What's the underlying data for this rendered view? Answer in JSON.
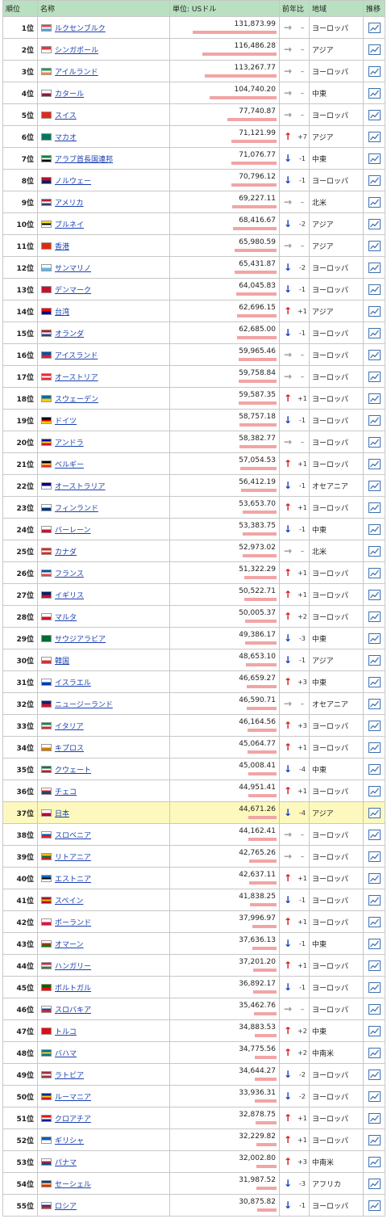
{
  "headers": {
    "rank": "順位",
    "name": "名称",
    "unit": "単位: USドル",
    "change": "前年比",
    "region": "地域",
    "trend": "推移"
  },
  "rank_suffix": "位",
  "max_value": 131873.99,
  "rows": [
    {
      "rank": 1,
      "name": "ルクセンブルク",
      "value": "131,873.99",
      "v": 131873.99,
      "dir": "flat",
      "change": "–",
      "region": "ヨーロッパ",
      "flag": [
        "#ef4135",
        "#ffffff",
        "#4d9fe0"
      ]
    },
    {
      "rank": 2,
      "name": "シンガポール",
      "value": "116,486.28",
      "v": 116486.28,
      "dir": "flat",
      "change": "–",
      "region": "アジア",
      "flag": [
        "#e0383e",
        "#ffffff"
      ]
    },
    {
      "rank": 3,
      "name": "アイルランド",
      "value": "113,267.77",
      "v": 113267.77,
      "dir": "flat",
      "change": "–",
      "region": "ヨーロッパ",
      "flag": [
        "#169b62",
        "#ffffff",
        "#ff883e"
      ]
    },
    {
      "rank": 4,
      "name": "カタール",
      "value": "104,740.20",
      "v": 104740.2,
      "dir": "flat",
      "change": "–",
      "region": "中東",
      "flag": [
        "#ffffff",
        "#8d1b3d"
      ]
    },
    {
      "rank": 5,
      "name": "スイス",
      "value": "77,740.87",
      "v": 77740.87,
      "dir": "flat",
      "change": "–",
      "region": "ヨーロッパ",
      "flag": [
        "#e0291c"
      ]
    },
    {
      "rank": 6,
      "name": "マカオ",
      "value": "71,121.99",
      "v": 71121.99,
      "dir": "up",
      "change": "+7",
      "region": "アジア",
      "flag": [
        "#00785e"
      ]
    },
    {
      "rank": 7,
      "name": "アラブ首長国連邦",
      "value": "71,076.77",
      "v": 71076.77,
      "dir": "down",
      "change": "-1",
      "region": "中東",
      "flag": [
        "#00843d",
        "#ffffff",
        "#000000"
      ]
    },
    {
      "rank": 8,
      "name": "ノルウェー",
      "value": "70,796.12",
      "v": 70796.12,
      "dir": "down",
      "change": "-1",
      "region": "ヨーロッパ",
      "flag": [
        "#ba0c2f",
        "#00205b"
      ]
    },
    {
      "rank": 9,
      "name": "アメリカ",
      "value": "69,227.11",
      "v": 69227.11,
      "dir": "flat",
      "change": "–",
      "region": "北米",
      "flag": [
        "#b22234",
        "#ffffff",
        "#3c3b6e"
      ]
    },
    {
      "rank": 10,
      "name": "ブルネイ",
      "value": "68,416.67",
      "v": 68416.67,
      "dir": "down",
      "change": "-2",
      "region": "アジア",
      "flag": [
        "#f7e017",
        "#000000",
        "#ffffff"
      ]
    },
    {
      "rank": 11,
      "name": "香港",
      "value": "65,980.59",
      "v": 65980.59,
      "dir": "flat",
      "change": "–",
      "region": "アジア",
      "flag": [
        "#de2910"
      ]
    },
    {
      "rank": 12,
      "name": "サンマリノ",
      "value": "65,431.87",
      "v": 65431.87,
      "dir": "down",
      "change": "-2",
      "region": "ヨーロッパ",
      "flag": [
        "#ffffff",
        "#5eb6e4"
      ]
    },
    {
      "rank": 13,
      "name": "デンマーク",
      "value": "64,045.83",
      "v": 64045.83,
      "dir": "down",
      "change": "-1",
      "region": "ヨーロッパ",
      "flag": [
        "#c8102e"
      ]
    },
    {
      "rank": 14,
      "name": "台湾",
      "value": "62,696.15",
      "v": 62696.15,
      "dir": "up",
      "change": "+1",
      "region": "アジア",
      "flag": [
        "#fe0000",
        "#000095"
      ]
    },
    {
      "rank": 15,
      "name": "オランダ",
      "value": "62,685.00",
      "v": 62685.0,
      "dir": "down",
      "change": "-1",
      "region": "ヨーロッパ",
      "flag": [
        "#ae1c28",
        "#ffffff",
        "#21468b"
      ]
    },
    {
      "rank": 16,
      "name": "アイスランド",
      "value": "59,965.46",
      "v": 59965.46,
      "dir": "flat",
      "change": "–",
      "region": "ヨーロッパ",
      "flag": [
        "#02529c",
        "#dc1e35"
      ]
    },
    {
      "rank": 17,
      "name": "オーストリア",
      "value": "59,758.84",
      "v": 59758.84,
      "dir": "flat",
      "change": "–",
      "region": "ヨーロッパ",
      "flag": [
        "#ed2939",
        "#ffffff",
        "#ed2939"
      ]
    },
    {
      "rank": 18,
      "name": "スウェーデン",
      "value": "59,587.35",
      "v": 59587.35,
      "dir": "up",
      "change": "+1",
      "region": "ヨーロッパ",
      "flag": [
        "#006aa7",
        "#fecc00"
      ]
    },
    {
      "rank": 19,
      "name": "ドイツ",
      "value": "58,757.18",
      "v": 58757.18,
      "dir": "down",
      "change": "-1",
      "region": "ヨーロッパ",
      "flag": [
        "#000000",
        "#dd0000",
        "#ffce00"
      ]
    },
    {
      "rank": 20,
      "name": "アンドラ",
      "value": "58,382.77",
      "v": 58382.77,
      "dir": "flat",
      "change": "–",
      "region": "ヨーロッパ",
      "flag": [
        "#10069f",
        "#fedf00",
        "#d50032"
      ]
    },
    {
      "rank": 21,
      "name": "ベルギー",
      "value": "57,054.53",
      "v": 57054.53,
      "dir": "up",
      "change": "+1",
      "region": "ヨーロッパ",
      "flag": [
        "#000000",
        "#fae042",
        "#ed2939"
      ]
    },
    {
      "rank": 22,
      "name": "オーストラリア",
      "value": "56,412.19",
      "v": 56412.19,
      "dir": "down",
      "change": "-1",
      "region": "オセアニア",
      "flag": [
        "#00008b",
        "#ffffff"
      ]
    },
    {
      "rank": 23,
      "name": "フィンランド",
      "value": "53,653.70",
      "v": 53653.7,
      "dir": "up",
      "change": "+1",
      "region": "ヨーロッパ",
      "flag": [
        "#ffffff",
        "#003580"
      ]
    },
    {
      "rank": 24,
      "name": "バーレーン",
      "value": "53,383.75",
      "v": 53383.75,
      "dir": "down",
      "change": "-1",
      "region": "中東",
      "flag": [
        "#ffffff",
        "#ce1126"
      ]
    },
    {
      "rank": 25,
      "name": "カナダ",
      "value": "52,973.02",
      "v": 52973.02,
      "dir": "flat",
      "change": "–",
      "region": "北米",
      "flag": [
        "#d52b1e",
        "#ffffff",
        "#d52b1e"
      ]
    },
    {
      "rank": 26,
      "name": "フランス",
      "value": "51,322.29",
      "v": 51322.29,
      "dir": "up",
      "change": "+1",
      "region": "ヨーロッパ",
      "flag": [
        "#0055a4",
        "#ffffff",
        "#ef4135"
      ]
    },
    {
      "rank": 27,
      "name": "イギリス",
      "value": "50,522.71",
      "v": 50522.71,
      "dir": "up",
      "change": "+1",
      "region": "ヨーロッパ",
      "flag": [
        "#012169",
        "#c8102e"
      ]
    },
    {
      "rank": 28,
      "name": "マルタ",
      "value": "50,005.37",
      "v": 50005.37,
      "dir": "up",
      "change": "+2",
      "region": "ヨーロッパ",
      "flag": [
        "#ffffff",
        "#cf142b"
      ]
    },
    {
      "rank": 29,
      "name": "サウジアラビア",
      "value": "49,386.17",
      "v": 49386.17,
      "dir": "down",
      "change": "-3",
      "region": "中東",
      "flag": [
        "#006c35"
      ]
    },
    {
      "rank": 30,
      "name": "韓国",
      "value": "48,653.10",
      "v": 48653.1,
      "dir": "down",
      "change": "-1",
      "region": "アジア",
      "flag": [
        "#ffffff",
        "#cd2e3a"
      ]
    },
    {
      "rank": 31,
      "name": "イスラエル",
      "value": "46,659.27",
      "v": 46659.27,
      "dir": "up",
      "change": "+3",
      "region": "中東",
      "flag": [
        "#ffffff",
        "#0038b8"
      ]
    },
    {
      "rank": 32,
      "name": "ニュージーランド",
      "value": "46,590.71",
      "v": 46590.71,
      "dir": "flat",
      "change": "–",
      "region": "オセアニア",
      "flag": [
        "#00247d",
        "#cc142b"
      ]
    },
    {
      "rank": 33,
      "name": "イタリア",
      "value": "46,164.56",
      "v": 46164.56,
      "dir": "up",
      "change": "+3",
      "region": "ヨーロッパ",
      "flag": [
        "#009246",
        "#ffffff",
        "#ce2b37"
      ]
    },
    {
      "rank": 34,
      "name": "キプロス",
      "value": "45,064.77",
      "v": 45064.77,
      "dir": "up",
      "change": "+1",
      "region": "ヨーロッパ",
      "flag": [
        "#ffffff",
        "#d57800"
      ]
    },
    {
      "rank": 35,
      "name": "クウェート",
      "value": "45,008.41",
      "v": 45008.41,
      "dir": "down",
      "change": "-4",
      "region": "中東",
      "flag": [
        "#007a3d",
        "#ffffff",
        "#ce1126"
      ]
    },
    {
      "rank": 36,
      "name": "チェコ",
      "value": "44,951.41",
      "v": 44951.41,
      "dir": "up",
      "change": "+1",
      "region": "ヨーロッパ",
      "flag": [
        "#ffffff",
        "#d7141a",
        "#11457e"
      ]
    },
    {
      "rank": 37,
      "name": "日本",
      "value": "44,671.26",
      "v": 44671.26,
      "dir": "down",
      "change": "-4",
      "region": "アジア",
      "flag": [
        "#ffffff",
        "#bc002d"
      ],
      "highlight": true
    },
    {
      "rank": 38,
      "name": "スロベニア",
      "value": "44,162.41",
      "v": 44162.41,
      "dir": "flat",
      "change": "–",
      "region": "ヨーロッパ",
      "flag": [
        "#ffffff",
        "#005da4",
        "#ed1c24"
      ]
    },
    {
      "rank": 39,
      "name": "リトアニア",
      "value": "42,765.26",
      "v": 42765.26,
      "dir": "flat",
      "change": "–",
      "region": "ヨーロッパ",
      "flag": [
        "#fdb913",
        "#006a44",
        "#c1272d"
      ]
    },
    {
      "rank": 40,
      "name": "エストニア",
      "value": "42,637.11",
      "v": 42637.11,
      "dir": "up",
      "change": "+1",
      "region": "ヨーロッパ",
      "flag": [
        "#0072ce",
        "#000000",
        "#ffffff"
      ]
    },
    {
      "rank": 41,
      "name": "スペイン",
      "value": "41,838.25",
      "v": 41838.25,
      "dir": "down",
      "change": "-1",
      "region": "ヨーロッパ",
      "flag": [
        "#aa151b",
        "#f1bf00",
        "#aa151b"
      ]
    },
    {
      "rank": 42,
      "name": "ポーランド",
      "value": "37,996.97",
      "v": 37996.97,
      "dir": "up",
      "change": "+1",
      "region": "ヨーロッパ",
      "flag": [
        "#ffffff",
        "#dc143c"
      ]
    },
    {
      "rank": 43,
      "name": "オマーン",
      "value": "37,636.13",
      "v": 37636.13,
      "dir": "down",
      "change": "-1",
      "region": "中東",
      "flag": [
        "#ffffff",
        "#db161b",
        "#008000"
      ]
    },
    {
      "rank": 44,
      "name": "ハンガリー",
      "value": "37,201.20",
      "v": 37201.2,
      "dir": "up",
      "change": "+1",
      "region": "ヨーロッパ",
      "flag": [
        "#ce2939",
        "#ffffff",
        "#477050"
      ]
    },
    {
      "rank": 45,
      "name": "ポルトガル",
      "value": "36,892.17",
      "v": 36892.17,
      "dir": "down",
      "change": "-1",
      "region": "ヨーロッパ",
      "flag": [
        "#006600",
        "#ff0000"
      ]
    },
    {
      "rank": 46,
      "name": "スロバキア",
      "value": "35,462.76",
      "v": 35462.76,
      "dir": "flat",
      "change": "–",
      "region": "ヨーロッパ",
      "flag": [
        "#ffffff",
        "#0b4ea2",
        "#ee1c25"
      ]
    },
    {
      "rank": 47,
      "name": "トルコ",
      "value": "34,883.53",
      "v": 34883.53,
      "dir": "up",
      "change": "+2",
      "region": "中東",
      "flag": [
        "#e30a17"
      ]
    },
    {
      "rank": 48,
      "name": "バハマ",
      "value": "34,775.56",
      "v": 34775.56,
      "dir": "up",
      "change": "+2",
      "region": "中南米",
      "flag": [
        "#00778b",
        "#ffc72c",
        "#00778b"
      ]
    },
    {
      "rank": 49,
      "name": "ラトビア",
      "value": "34,644.27",
      "v": 34644.27,
      "dir": "down",
      "change": "-2",
      "region": "ヨーロッパ",
      "flag": [
        "#9e3039",
        "#ffffff",
        "#9e3039"
      ]
    },
    {
      "rank": 50,
      "name": "ルーマニア",
      "value": "33,936.31",
      "v": 33936.31,
      "dir": "down",
      "change": "-2",
      "region": "ヨーロッパ",
      "flag": [
        "#002b7f",
        "#fcd116",
        "#ce1126"
      ]
    },
    {
      "rank": 51,
      "name": "クロアチア",
      "value": "32,878.75",
      "v": 32878.75,
      "dir": "up",
      "change": "+1",
      "region": "ヨーロッパ",
      "flag": [
        "#ff0000",
        "#ffffff",
        "#171796"
      ]
    },
    {
      "rank": 52,
      "name": "ギリシャ",
      "value": "32,229.82",
      "v": 32229.82,
      "dir": "up",
      "change": "+1",
      "region": "ヨーロッパ",
      "flag": [
        "#0d5eaf",
        "#ffffff"
      ]
    },
    {
      "rank": 53,
      "name": "パナマ",
      "value": "32,002.80",
      "v": 32002.8,
      "dir": "up",
      "change": "+3",
      "region": "中南米",
      "flag": [
        "#ffffff",
        "#d21034",
        "#005293"
      ]
    },
    {
      "rank": 54,
      "name": "セーシェル",
      "value": "31,987.52",
      "v": 31987.52,
      "dir": "down",
      "change": "-3",
      "region": "アフリカ",
      "flag": [
        "#003f87",
        "#fcd856",
        "#d62828"
      ]
    },
    {
      "rank": 55,
      "name": "ロシア",
      "value": "30,875.82",
      "v": 30875.82,
      "dir": "down",
      "change": "-1",
      "region": "ヨーロッパ",
      "flag": [
        "#ffffff",
        "#0039a6",
        "#d52b1e"
      ]
    }
  ]
}
